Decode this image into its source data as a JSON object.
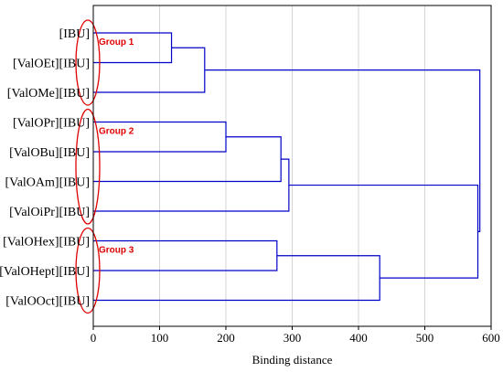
{
  "chart_data": {
    "type": "dendrogram",
    "orientation": "horizontal",
    "xlabel": "Binding distance",
    "xlim": [
      0,
      600
    ],
    "xticks": [
      0,
      100,
      200,
      300,
      400,
      500,
      600
    ],
    "grid": true,
    "link_color": "#0000c8",
    "grid_color": "#d4d4d4",
    "leaves": [
      "[IBU]",
      "[ValOEt][IBU]",
      "[ValOMe][IBU]",
      "[ValOPr][IBU]",
      "[ValOBu][IBU]",
      "[ValOAm][IBU]",
      "[ValOiPr][IBU]",
      "[ValOHex][IBU]",
      "[ValOHept][IBU]",
      "[ValOOct][IBU]"
    ],
    "merges": [
      {
        "left": "leaf:0",
        "right": "leaf:1",
        "distance": 118
      },
      {
        "left": "merge:0",
        "right": "leaf:2",
        "distance": 168
      },
      {
        "left": "leaf:3",
        "right": "leaf:4",
        "distance": 200
      },
      {
        "left": "merge:2",
        "right": "leaf:5",
        "distance": 283
      },
      {
        "left": "merge:3",
        "right": "leaf:6",
        "distance": 295
      },
      {
        "left": "leaf:7",
        "right": "leaf:8",
        "distance": 277
      },
      {
        "left": "merge:5",
        "right": "leaf:9",
        "distance": 432
      },
      {
        "left": "merge:4",
        "right": "merge:6",
        "distance": 580
      },
      {
        "left": "merge:1",
        "right": "merge:7",
        "distance": 583
      }
    ],
    "groups": [
      {
        "label": "Group 1",
        "members": [
          0,
          1,
          2
        ]
      },
      {
        "label": "Group 2",
        "members": [
          3,
          4,
          5,
          6
        ]
      },
      {
        "label": "Group 3",
        "members": [
          7,
          8,
          9
        ]
      }
    ],
    "group_color": "#e00000"
  }
}
